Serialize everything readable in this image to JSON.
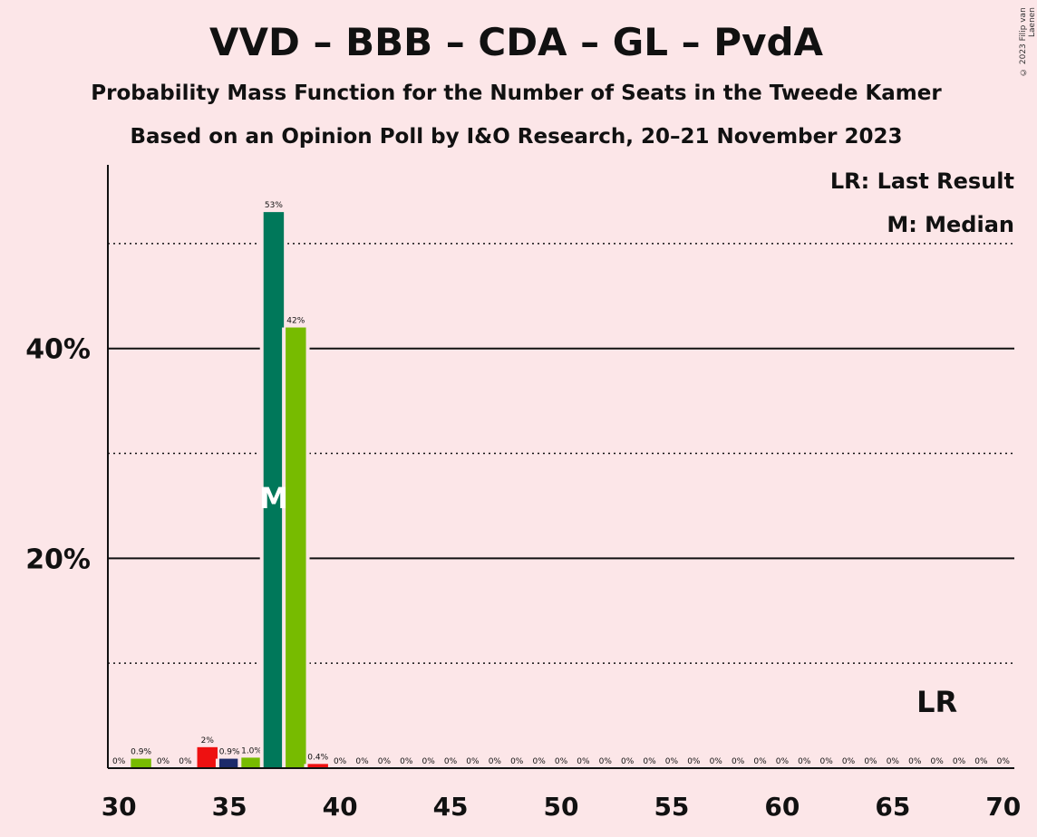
{
  "title": "VVD – BBB – CDA – GL – PvdA",
  "subtitle1": "Probability Mass Function for the Number of Seats in the Tweede Kamer",
  "subtitle2": "Based on an Opinion Poll by I&O Research, 20–21 November 2023",
  "copyright": "© 2023 Filip van Laenen",
  "legend": {
    "last_result": "LR: Last Result",
    "median": "M: Median"
  },
  "chart_data": {
    "type": "bar",
    "x": [
      30,
      31,
      32,
      33,
      34,
      35,
      36,
      37,
      38,
      39,
      40,
      41,
      42,
      43,
      44,
      45,
      46,
      47,
      48,
      49,
      50,
      51,
      52,
      53,
      54,
      55,
      56,
      57,
      58,
      59,
      60,
      61,
      62,
      63,
      64,
      65,
      66,
      67,
      68,
      69,
      70
    ],
    "values": [
      0,
      0.9,
      0,
      0,
      2,
      0.9,
      1.0,
      53,
      42,
      0.4,
      0,
      0,
      0,
      0,
      0,
      0,
      0,
      0,
      0,
      0,
      0,
      0,
      0,
      0,
      0,
      0,
      0,
      0,
      0,
      0,
      0,
      0,
      0,
      0,
      0,
      0,
      0,
      0,
      0,
      0,
      0
    ],
    "labels": [
      "0%",
      "0.9%",
      "0%",
      "0%",
      "2%",
      "0.9%",
      "1.0%",
      "53%",
      "42%",
      "0.4%",
      "0%",
      "0%",
      "0%",
      "0%",
      "0%",
      "0%",
      "0%",
      "0%",
      "0%",
      "0%",
      "0%",
      "0%",
      "0%",
      "0%",
      "0%",
      "0%",
      "0%",
      "0%",
      "0%",
      "0%",
      "0%",
      "0%",
      "0%",
      "0%",
      "0%",
      "0%",
      "0%",
      "0%",
      "0%",
      "0%",
      "0%"
    ],
    "colors": [
      "#77bb00",
      "#77bb00",
      "#77bb00",
      "#77bb00",
      "#ee1111",
      "#1c2a6a",
      "#77bb00",
      "#00785a",
      "#77bb00",
      "#ee1111",
      "#77bb00",
      "#77bb00",
      "#77bb00",
      "#77bb00",
      "#77bb00",
      "#77bb00",
      "#77bb00",
      "#77bb00",
      "#77bb00",
      "#77bb00",
      "#77bb00",
      "#77bb00",
      "#77bb00",
      "#77bb00",
      "#77bb00",
      "#77bb00",
      "#77bb00",
      "#77bb00",
      "#77bb00",
      "#77bb00",
      "#77bb00",
      "#77bb00",
      "#77bb00",
      "#77bb00",
      "#77bb00",
      "#77bb00",
      "#77bb00",
      "#77bb00",
      "#77bb00",
      "#77bb00",
      "#77bb00"
    ],
    "xticks": [
      30,
      35,
      40,
      45,
      50,
      55,
      60,
      65,
      70
    ],
    "xtick_labels": [
      "30",
      "35",
      "40",
      "45",
      "50",
      "55",
      "60",
      "65",
      "70"
    ],
    "yticks_solid": [
      20,
      40
    ],
    "ytick_labels": [
      "20%",
      "40%"
    ],
    "yticks_dotted": [
      10,
      30,
      50
    ],
    "ylim": [
      0,
      57.5
    ],
    "xlim": [
      29.5,
      70.5
    ],
    "median_seat": 37,
    "median_label": "M",
    "last_result_seat": 67,
    "last_result_label": "LR",
    "grid": true,
    "legend_position": "top-right"
  }
}
